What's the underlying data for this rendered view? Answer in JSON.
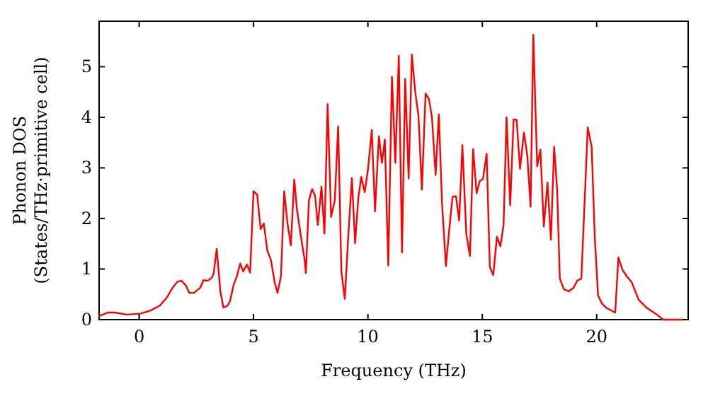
{
  "chart_data": {
    "type": "line",
    "xlabel": "Frequency (THz)",
    "ylabel": "Phonon DOS\n(States/THz·primitive cell)",
    "xlim": [
      -1.75,
      24
    ],
    "ylim": [
      0,
      5.9
    ],
    "xticks": [
      0,
      5,
      10,
      15,
      20
    ],
    "yticks": [
      0,
      1,
      2,
      3,
      4,
      5
    ],
    "grid": false,
    "marker": "none",
    "line_style": "solid",
    "series": [
      {
        "color": "#ff0000",
        "x": [
          -1.75,
          -1.36,
          -1.05,
          -0.54,
          0.08,
          0.5,
          0.91,
          1.22,
          1.42,
          1.67,
          1.85,
          2.05,
          2.19,
          2.4,
          2.67,
          2.81,
          3.0,
          3.18,
          3.26,
          3.39,
          3.55,
          3.68,
          3.85,
          3.97,
          4.13,
          4.26,
          4.42,
          4.55,
          4.71,
          4.85,
          5.0,
          5.16,
          5.31,
          5.45,
          5.6,
          5.76,
          5.93,
          6.05,
          6.2,
          6.34,
          6.49,
          6.63,
          6.78,
          6.9,
          7.07,
          7.23,
          7.29,
          7.42,
          7.56,
          7.69,
          7.81,
          7.97,
          8.1,
          8.24,
          8.39,
          8.55,
          8.7,
          8.84,
          8.99,
          9.13,
          9.3,
          9.44,
          9.58,
          9.71,
          9.86,
          10.0,
          10.17,
          10.31,
          10.48,
          10.61,
          10.74,
          10.89,
          11.05,
          11.2,
          11.35,
          11.49,
          11.63,
          11.78,
          11.92,
          12.07,
          12.21,
          12.36,
          12.52,
          12.67,
          12.8,
          12.96,
          13.1,
          13.24,
          13.41,
          13.55,
          13.7,
          13.85,
          13.99,
          14.13,
          14.3,
          14.46,
          14.6,
          14.75,
          14.89,
          15.03,
          15.19,
          15.33,
          15.48,
          15.64,
          15.79,
          15.93,
          16.06,
          16.22,
          16.37,
          16.5,
          16.65,
          16.82,
          16.97,
          17.11,
          17.23,
          17.4,
          17.54,
          17.69,
          17.85,
          18.0,
          18.14,
          18.27,
          18.39,
          18.57,
          18.78,
          18.99,
          19.15,
          19.33,
          19.61,
          19.78,
          19.92,
          20.06,
          20.23,
          20.43,
          20.81,
          20.95,
          21.12,
          21.31,
          21.53,
          21.84,
          22.2,
          22.6,
          22.91,
          23.8
        ],
        "values": [
          0.07,
          0.14,
          0.14,
          0.1,
          0.12,
          0.18,
          0.28,
          0.44,
          0.6,
          0.75,
          0.77,
          0.67,
          0.53,
          0.53,
          0.63,
          0.78,
          0.77,
          0.83,
          0.92,
          1.4,
          0.56,
          0.24,
          0.27,
          0.36,
          0.69,
          0.84,
          1.11,
          0.95,
          1.09,
          0.93,
          2.54,
          2.47,
          1.79,
          1.9,
          1.37,
          1.18,
          0.72,
          0.53,
          0.86,
          2.54,
          1.89,
          1.47,
          2.77,
          2.17,
          1.65,
          1.19,
          0.92,
          2.35,
          2.58,
          2.45,
          1.87,
          2.63,
          1.7,
          4.26,
          2.03,
          2.35,
          3.82,
          0.95,
          0.41,
          1.56,
          2.8,
          1.51,
          2.4,
          2.82,
          2.52,
          2.96,
          3.75,
          2.14,
          3.63,
          3.1,
          3.56,
          1.07,
          4.8,
          3.1,
          5.22,
          1.33,
          4.76,
          2.79,
          5.24,
          4.5,
          4.03,
          2.57,
          4.47,
          4.36,
          4.0,
          2.86,
          4.06,
          2.3,
          1.06,
          1.75,
          2.43,
          2.44,
          1.96,
          3.45,
          1.7,
          1.26,
          3.37,
          2.5,
          2.74,
          2.78,
          3.28,
          1.04,
          0.88,
          1.64,
          1.45,
          1.87,
          4.0,
          2.26,
          3.96,
          3.95,
          2.98,
          3.7,
          3.24,
          2.23,
          5.63,
          3.03,
          3.36,
          1.84,
          2.71,
          1.58,
          3.42,
          2.59,
          0.81,
          0.6,
          0.56,
          0.63,
          0.77,
          0.81,
          3.8,
          3.42,
          1.6,
          0.48,
          0.32,
          0.23,
          0.14,
          1.23,
          0.99,
          0.86,
          0.74,
          0.39,
          0.23,
          0.11,
          0,
          0
        ]
      }
    ]
  }
}
